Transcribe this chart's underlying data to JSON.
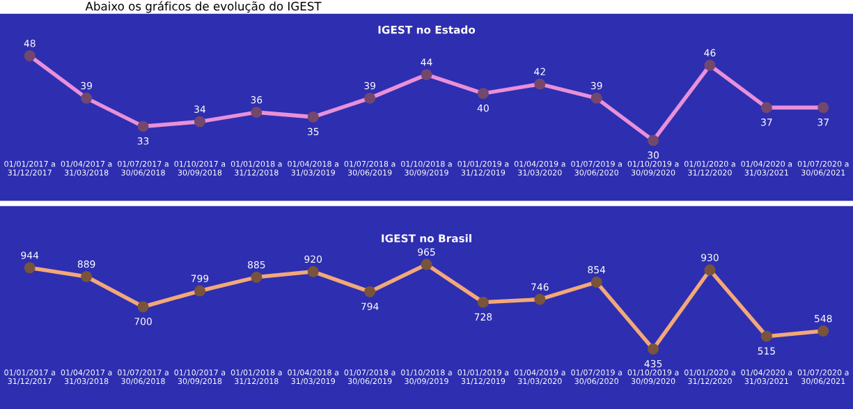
{
  "chart_data": [
    {
      "type": "line",
      "title": "IGEST no Estado",
      "annotations": [
        "Abaixo os gráficos de evolução do IGEST"
      ],
      "categories": [
        "01/01/2017 a\n31/12/2017",
        "01/04/2017 a\n31/03/2018",
        "01/07/2017 a\n30/06/2018",
        "01/10/2017 a\n30/09/2018",
        "01/01/2018 a\n31/12/2018",
        "01/04/2018 a\n31/03/2019",
        "01/07/2018 a\n30/06/2019",
        "01/10/2018 a\n30/09/2019",
        "01/01/2019 a\n31/12/2019",
        "01/04/2019 a\n31/03/2020",
        "01/07/2019 a\n30/06/2020",
        "01/10/2019 a\n30/09/2020",
        "01/01/2020 a\n31/12/2020",
        "01/04/2020 a\n31/03/2021",
        "01/07/2020 a\n30/06/2021"
      ],
      "series": [
        {
          "color": "#e890d8",
          "values": [
            48,
            39,
            33,
            34,
            36,
            35,
            39,
            44,
            40,
            42,
            39,
            30,
            46,
            37,
            37
          ]
        }
      ],
      "data_labels": true,
      "marker": "circle",
      "tick_labels": "x",
      "grid": false,
      "legend": false
    },
    {
      "type": "line",
      "title": "IGEST no Brasil",
      "categories": [
        "01/01/2017 a\n31/12/2017",
        "01/04/2017 a\n31/03/2018",
        "01/07/2017 a\n30/06/2018",
        "01/10/2017 a\n30/09/2018",
        "01/01/2018 a\n31/12/2018",
        "01/04/2018 a\n31/03/2019",
        "01/07/2018 a\n30/06/2019",
        "01/10/2018 a\n30/09/2019",
        "01/01/2019 a\n31/12/2019",
        "01/04/2019 a\n31/03/2020",
        "01/07/2019 a\n30/06/2020",
        "01/10/2019 a\n30/09/2020",
        "01/01/2020 a\n31/12/2020",
        "01/04/2020 a\n31/03/2021",
        "01/07/2020 a\n30/06/2021"
      ],
      "series": [
        {
          "color": "#f2a878",
          "values": [
            944,
            889,
            700,
            799,
            885,
            920,
            794,
            965,
            728,
            746,
            854,
            435,
            930,
            515,
            548
          ]
        }
      ],
      "data_labels": true,
      "marker": "circle",
      "tick_labels": "x",
      "grid": false,
      "legend": false
    }
  ]
}
